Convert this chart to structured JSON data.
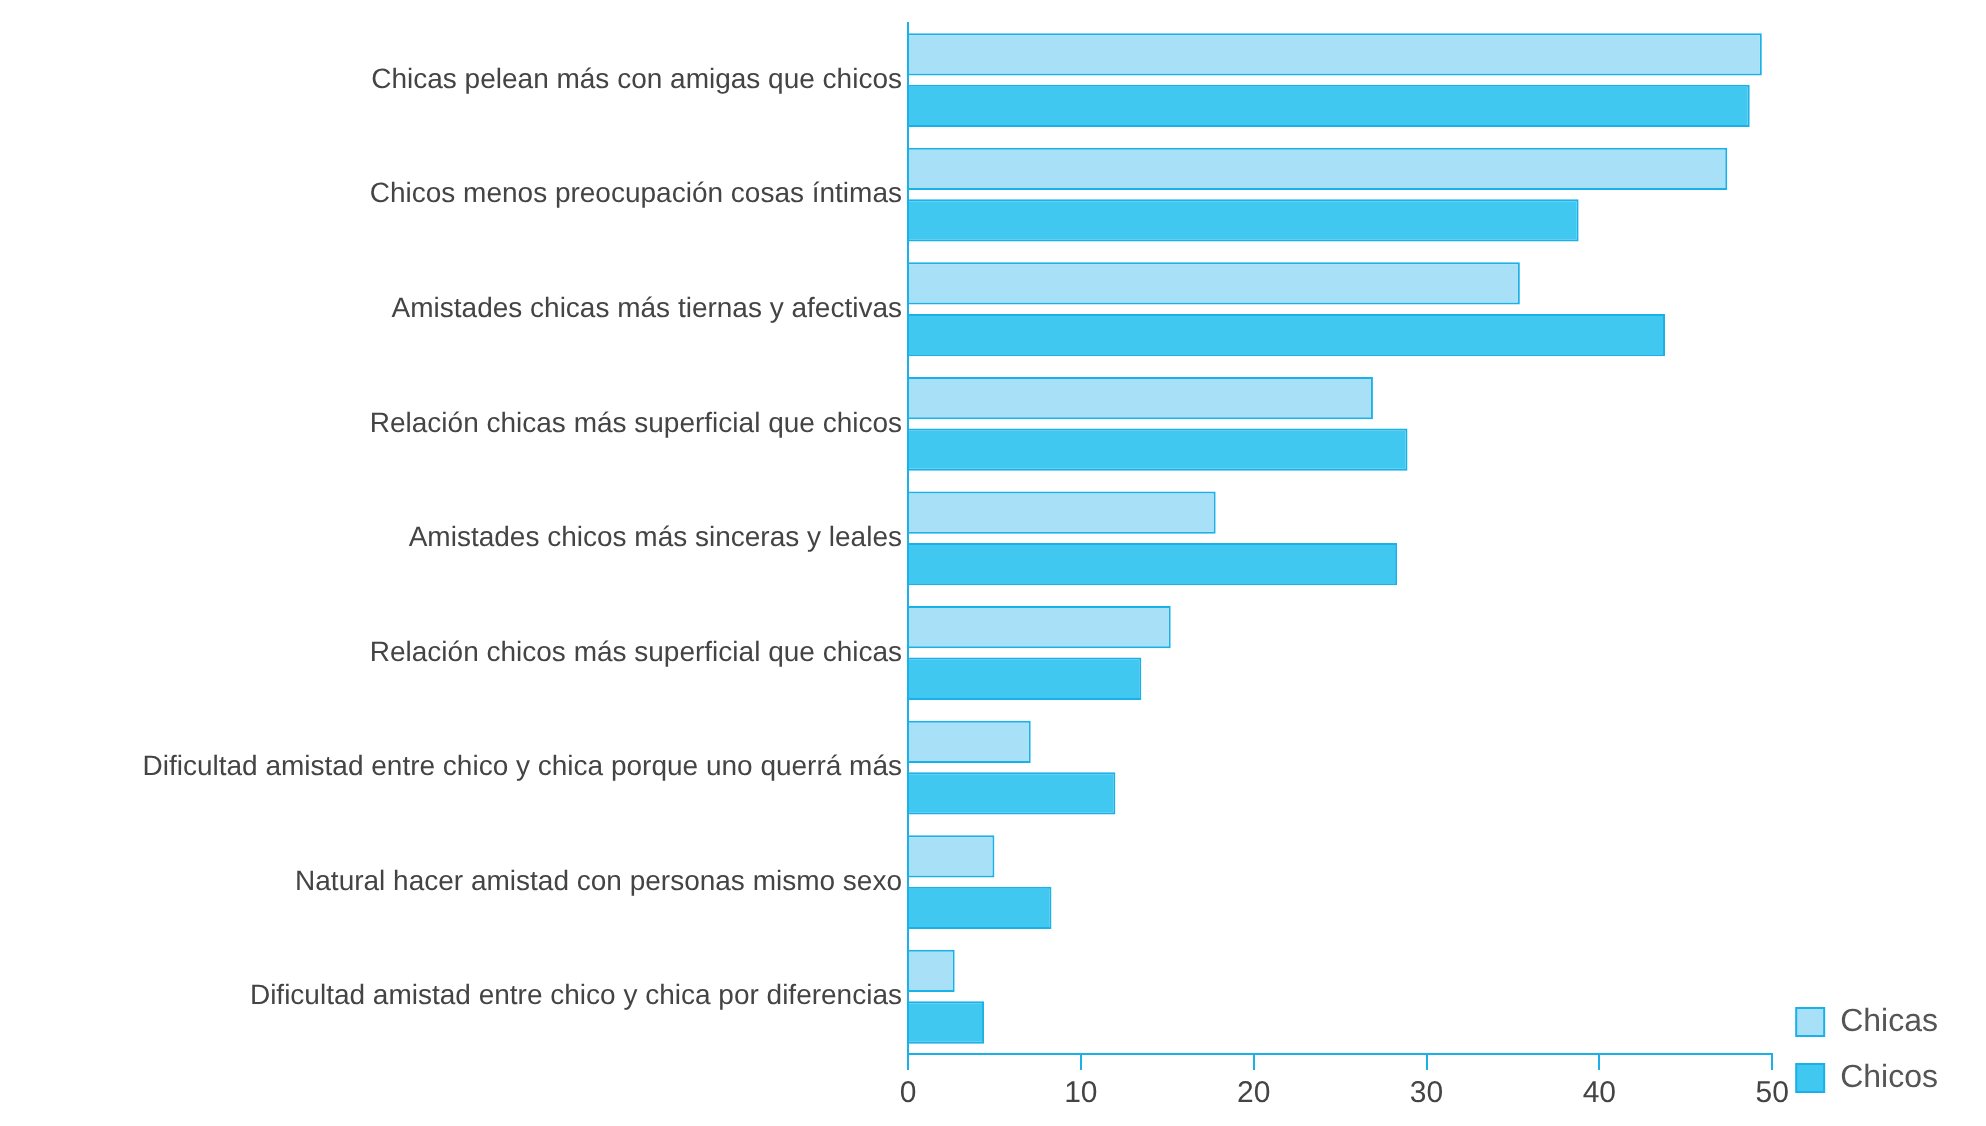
{
  "chart_data": {
    "type": "bar",
    "orientation": "horizontal",
    "categories": [
      "Chicas pelean más con amigas que chicos",
      "Chicos menos preocupación cosas íntimas",
      "Amistades chicas más tiernas y afectivas",
      "Relación chicas más superficial que chicos",
      "Amistades chicos más sinceras y leales",
      "Relación chicos más superficial que chicas",
      "Dificultad amistad entre chico y chica porque uno querrá más",
      "Natural hacer amistad con personas mismo sexo",
      "Dificultad amistad entre chico y chica por diferencias"
    ],
    "series": [
      {
        "name": "Chicas",
        "color": "#a8e0f8",
        "values": [
          49.4,
          47.4,
          35.4,
          26.9,
          17.8,
          15.2,
          7.1,
          5.0,
          2.7
        ]
      },
      {
        "name": "Chicos",
        "color": "#40c8f0",
        "values": [
          48.7,
          38.8,
          43.8,
          28.9,
          28.3,
          13.5,
          12.0,
          8.3,
          4.4
        ]
      }
    ],
    "xlim": [
      0,
      50
    ],
    "xticks": [
      0,
      10,
      20,
      30,
      40,
      50
    ],
    "grid": false,
    "legend": "bottom right"
  }
}
